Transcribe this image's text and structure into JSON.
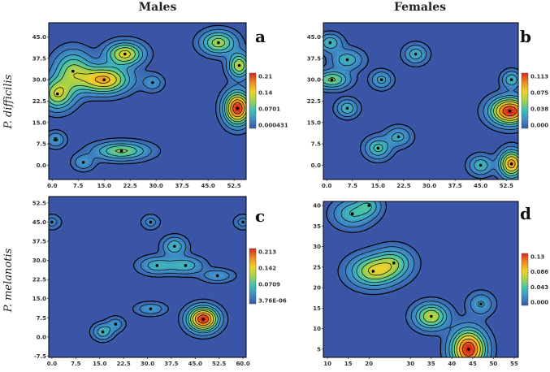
{
  "figure": {
    "column_headers": [
      "Males",
      "Females"
    ],
    "row_headers": [
      "P. difficilis",
      "P. melanotis"
    ]
  },
  "colors": {
    "background_low": "#3a55a6",
    "contour_line": "#000000",
    "colormap": [
      "#3a55a6",
      "#3f8fc8",
      "#41c0b3",
      "#a4d24a",
      "#f1d12a",
      "#f08a24",
      "#d7261e"
    ]
  },
  "chart_data": [
    {
      "type": "heatmap",
      "panel_label": "a",
      "group": "Males",
      "species": "P. difficilis",
      "x_ticks": [
        "0.0",
        "7.5",
        "15.0",
        "22.5",
        "30.0",
        "37.5",
        "45.0",
        "52.5"
      ],
      "y_ticks": [
        "0.0",
        "7.5",
        "15.0",
        "22.5",
        "30.0",
        "37.5",
        "45.0"
      ],
      "xlim": [
        -1,
        56
      ],
      "ylim": [
        -5,
        50
      ],
      "colorbar_ticks": [
        "0.21",
        "0.14",
        "0.0701",
        "0.000431"
      ],
      "peaks": [
        {
          "x": 21,
          "y": 39,
          "height": 0.62,
          "sx": 3.4,
          "sy": 2.6
        },
        {
          "x": 15,
          "y": 30,
          "height": 0.75,
          "sx": 4.5,
          "sy": 3.0
        },
        {
          "x": 6,
          "y": 33,
          "height": 0.45,
          "sx": 3.5,
          "sy": 4.5
        },
        {
          "x": 1.5,
          "y": 25,
          "height": 0.55,
          "sx": 3.0,
          "sy": 3.5
        },
        {
          "x": 29,
          "y": 29,
          "height": 0.18,
          "sx": 2.0,
          "sy": 2.0
        },
        {
          "x": 48,
          "y": 43,
          "height": 0.5,
          "sx": 3.2,
          "sy": 2.6
        },
        {
          "x": 54,
          "y": 35,
          "height": 0.55,
          "sx": 2.0,
          "sy": 2.8
        },
        {
          "x": 53.5,
          "y": 20,
          "height": 1.0,
          "sx": 2.4,
          "sy": 3.6
        },
        {
          "x": 20,
          "y": 5,
          "height": 0.45,
          "sx": 5.0,
          "sy": 2.0
        },
        {
          "x": 9,
          "y": 1,
          "height": 0.2,
          "sx": 2.0,
          "sy": 1.8
        },
        {
          "x": 1,
          "y": 9,
          "height": 0.22,
          "sx": 1.8,
          "sy": 1.8
        }
      ]
    },
    {
      "type": "heatmap",
      "panel_label": "b",
      "group": "Females",
      "species": "P. difficilis",
      "x_ticks": [
        "0.0",
        "7.5",
        "15.0",
        "22.5",
        "30.0",
        "37.5",
        "45.0",
        "52.5"
      ],
      "y_ticks": [
        "0.0",
        "7.5",
        "15.0",
        "22.5",
        "30.0",
        "37.5",
        "45.0"
      ],
      "xlim": [
        -1,
        56
      ],
      "ylim": [
        -5,
        50
      ],
      "colorbar_ticks": [
        "0.113",
        "0.075",
        "0.038",
        "0.000"
      ],
      "peaks": [
        {
          "x": 1,
          "y": 43,
          "height": 0.3,
          "sx": 2.2,
          "sy": 2.0
        },
        {
          "x": 6,
          "y": 37,
          "height": 0.28,
          "sx": 3.0,
          "sy": 2.4
        },
        {
          "x": 1.5,
          "y": 30,
          "height": 0.45,
          "sx": 3.2,
          "sy": 2.0
        },
        {
          "x": 6,
          "y": 20,
          "height": 0.3,
          "sx": 2.0,
          "sy": 2.0
        },
        {
          "x": 16,
          "y": 30,
          "height": 0.25,
          "sx": 2.0,
          "sy": 2.0
        },
        {
          "x": 26,
          "y": 39,
          "height": 0.28,
          "sx": 2.2,
          "sy": 2.2
        },
        {
          "x": 15,
          "y": 6,
          "height": 0.35,
          "sx": 2.4,
          "sy": 2.4
        },
        {
          "x": 21,
          "y": 10,
          "height": 0.25,
          "sx": 2.4,
          "sy": 2.2
        },
        {
          "x": 53.5,
          "y": 19,
          "height": 1.0,
          "sx": 3.6,
          "sy": 3.0
        },
        {
          "x": 54,
          "y": 30,
          "height": 0.3,
          "sx": 1.8,
          "sy": 2.0
        },
        {
          "x": 45,
          "y": 0,
          "height": 0.3,
          "sx": 2.2,
          "sy": 2.2
        },
        {
          "x": 54,
          "y": 0.5,
          "height": 0.8,
          "sx": 2.2,
          "sy": 3.0
        }
      ]
    },
    {
      "type": "heatmap",
      "panel_label": "c",
      "group": "Males",
      "species": "P. melanotis",
      "x_ticks": [
        "0.0",
        "7.5",
        "15.0",
        "22.5",
        "30.0",
        "37.5",
        "45.0",
        "52.5",
        "60.0"
      ],
      "y_ticks": [
        "-7.5",
        "0.0",
        "7.5",
        "15.0",
        "22.5",
        "30.0",
        "37.5",
        "45.0",
        "52.5"
      ],
      "xlim": [
        -1,
        61
      ],
      "ylim": [
        -8,
        55
      ],
      "colorbar_ticks": [
        "0.213",
        "0.142",
        "0.0709",
        "3.76E-06"
      ],
      "peaks": [
        {
          "x": 0,
          "y": 45,
          "height": 0.15,
          "sx": 1.8,
          "sy": 1.8
        },
        {
          "x": 31,
          "y": 45,
          "height": 0.15,
          "sx": 1.8,
          "sy": 1.8
        },
        {
          "x": 60,
          "y": 45,
          "height": 0.15,
          "sx": 1.8,
          "sy": 1.8
        },
        {
          "x": 38.5,
          "y": 35.5,
          "height": 0.3,
          "sx": 2.4,
          "sy": 2.4
        },
        {
          "x": 33,
          "y": 28,
          "height": 0.28,
          "sx": 3.6,
          "sy": 2.2
        },
        {
          "x": 42,
          "y": 28,
          "height": 0.28,
          "sx": 3.6,
          "sy": 2.2
        },
        {
          "x": 52,
          "y": 24,
          "height": 0.2,
          "sx": 3.2,
          "sy": 1.6
        },
        {
          "x": 31,
          "y": 11,
          "height": 0.2,
          "sx": 3.0,
          "sy": 1.6
        },
        {
          "x": 16,
          "y": 2,
          "height": 0.3,
          "sx": 2.0,
          "sy": 2.0
        },
        {
          "x": 20,
          "y": 5,
          "height": 0.18,
          "sx": 1.8,
          "sy": 1.8
        },
        {
          "x": 47.5,
          "y": 7,
          "height": 1.0,
          "sx": 3.0,
          "sy": 3.0
        }
      ]
    },
    {
      "type": "heatmap",
      "panel_label": "d",
      "group": "Females",
      "species": "P. melanotis",
      "x_ticks": [
        "10",
        "15",
        "20",
        "30",
        "35",
        "40",
        "45",
        "50",
        "55"
      ],
      "y_ticks": [
        "5",
        "10",
        "15",
        "20",
        "25",
        "30",
        "35",
        "40"
      ],
      "xlim": [
        9,
        56
      ],
      "ylim": [
        3,
        41
      ],
      "colorbar_ticks": [
        "0.13",
        "0.086",
        "0.043",
        "0.000"
      ],
      "peaks": [
        {
          "x": 16,
          "y": 38,
          "height": 0.3,
          "sx": 3.0,
          "sy": 2.2
        },
        {
          "x": 20,
          "y": 40,
          "height": 0.25,
          "sx": 2.0,
          "sy": 1.8
        },
        {
          "x": 21,
          "y": 24,
          "height": 0.55,
          "sx": 3.6,
          "sy": 2.4
        },
        {
          "x": 26,
          "y": 26,
          "height": 0.35,
          "sx": 3.0,
          "sy": 2.4
        },
        {
          "x": 35,
          "y": 13,
          "height": 0.55,
          "sx": 2.6,
          "sy": 2.0
        },
        {
          "x": 47,
          "y": 16,
          "height": 0.22,
          "sx": 2.0,
          "sy": 1.8
        },
        {
          "x": 44,
          "y": 5,
          "height": 1.0,
          "sx": 2.6,
          "sy": 3.0
        }
      ]
    }
  ]
}
